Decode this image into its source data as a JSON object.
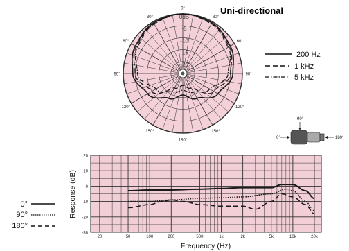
{
  "colors": {
    "grid_bg": "#f2cfd6",
    "grid_line": "#333333",
    "curve": "#1a1a1a",
    "polar_fill": "#f4d0d8"
  },
  "chart_data": [
    {
      "type": "polar",
      "title": "Uni-directional",
      "angle_labels": [
        "0°",
        "30°",
        "60°",
        "90°",
        "120°",
        "150°",
        "180°",
        "150°",
        "120°",
        "90°",
        "60°",
        "30°"
      ],
      "radial_labels": [
        "0dB",
        "-5",
        "-10",
        "-15",
        "-20",
        "-25"
      ],
      "rlim": [
        -25,
        0
      ],
      "legend_position": "right",
      "series": [
        {
          "name": "200 Hz",
          "style": "solid",
          "angles": [
            0,
            30,
            60,
            90,
            120,
            150,
            180,
            210,
            240,
            270,
            300,
            330
          ],
          "values": [
            0,
            -0.5,
            -2,
            -4,
            -8,
            -13,
            -16,
            -13,
            -8,
            -4,
            -2,
            -0.5
          ]
        },
        {
          "name": "1 kHz",
          "style": "dashed",
          "angles": [
            0,
            30,
            60,
            90,
            120,
            150,
            180,
            210,
            240,
            270,
            300,
            330
          ],
          "values": [
            0,
            -0.8,
            -2.5,
            -5,
            -10,
            -18,
            -20,
            -18,
            -10,
            -5,
            -2.5,
            -0.8
          ]
        },
        {
          "name": "5 kHz",
          "style": "dashdot",
          "angles": [
            0,
            30,
            60,
            90,
            120,
            150,
            180,
            210,
            240,
            270,
            300,
            330
          ],
          "values": [
            0,
            -1,
            -3,
            -6,
            -12,
            -16,
            -18,
            -16,
            -12,
            -6,
            -3,
            -1
          ]
        }
      ]
    },
    {
      "type": "line",
      "xlabel": "Frequency (Hz)",
      "ylabel": "Response (dB)",
      "x_scale": "log",
      "xlim": [
        15,
        25000
      ],
      "ylim": [
        -30,
        20
      ],
      "x_ticks": [
        20,
        50,
        100,
        200,
        500,
        1000,
        2000,
        5000,
        10000,
        20000
      ],
      "x_tick_labels": [
        "20",
        "50",
        "100",
        "200",
        "500",
        "1k",
        "2k",
        "5k",
        "10k",
        "20k"
      ],
      "y_ticks": [
        -30,
        -20,
        -10,
        0,
        10,
        20
      ],
      "grid": true,
      "legend_position": "left",
      "series": [
        {
          "name": "0°",
          "style": "solid",
          "x": [
            50,
            100,
            200,
            500,
            1000,
            2000,
            5000,
            7000,
            10000,
            15000,
            20000
          ],
          "y": [
            -3,
            -2.5,
            -2.5,
            -2,
            -1.5,
            -1,
            -1,
            1,
            1,
            -3,
            -8
          ]
        },
        {
          "name": "90°",
          "style": "dotted",
          "x": [
            50,
            100,
            200,
            500,
            1000,
            2000,
            5000,
            8000,
            10000,
            15000,
            20000
          ],
          "y": [
            -10,
            -10,
            -9,
            -8,
            -7.5,
            -7,
            -5,
            -2,
            -3,
            -10,
            -16
          ]
        },
        {
          "name": "180°",
          "style": "dashed",
          "x": [
            50,
            100,
            150,
            200,
            300,
            500,
            1000,
            2000,
            3000,
            5000,
            7000,
            10000,
            15000,
            20000
          ],
          "y": [
            -14,
            -12,
            -10,
            -9,
            -10,
            -12,
            -13,
            -13,
            -15,
            -10,
            -5,
            -7,
            -12,
            -18
          ]
        }
      ]
    }
  ],
  "icon": {
    "top_label": "90°",
    "left_label": "0°",
    "right_label": "180°"
  }
}
